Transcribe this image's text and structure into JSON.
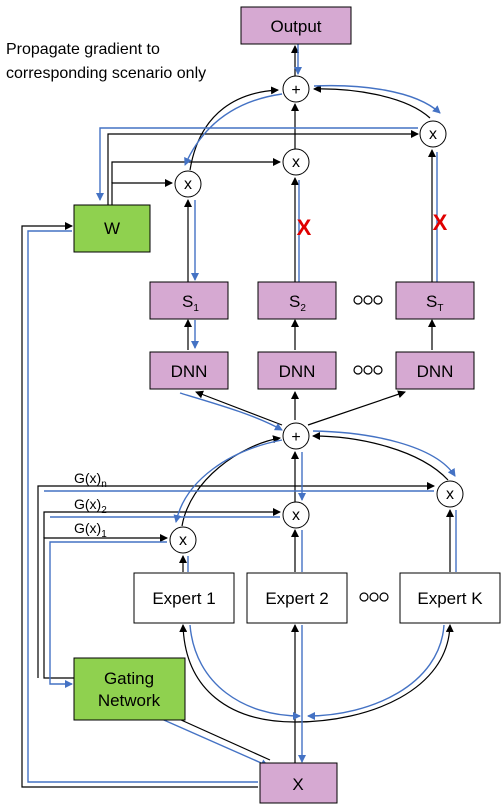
{
  "note": {
    "line1": "Propagate gradient to",
    "line2": "corresponding scenario only"
  },
  "nodes": {
    "output": "Output",
    "w": "W",
    "s1": "S",
    "s1_sub": "1",
    "s2": "S",
    "s2_sub": "2",
    "st": "S",
    "st_sub": "T",
    "dnn1": "DNN",
    "dnn2": "DNN",
    "dnn3": "DNN",
    "expert1": "Expert 1",
    "expert2": "Expert 2",
    "expertk": "Expert K",
    "gating_line1": "Gating",
    "gating_line2": "Network",
    "x": "X"
  },
  "operators": {
    "plus": "+",
    "times": "x"
  },
  "gate_labels": [
    {
      "text": "G(x)",
      "sub": "n"
    },
    {
      "text": "G(x)",
      "sub": "2"
    },
    {
      "text": "G(x)",
      "sub": "1"
    }
  ],
  "blocked_marker": "X",
  "colors": {
    "purple_box": "#d6a9d2",
    "green_box": "#8fd14f",
    "gradient_arrow": "#4472c4",
    "blocked_marker": "#e00000"
  }
}
